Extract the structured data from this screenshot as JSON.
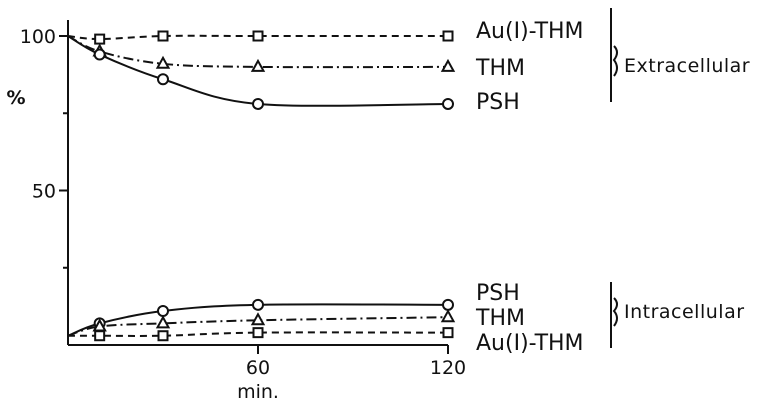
{
  "chart_data": {
    "type": "line",
    "title": "",
    "xlabel": "min.",
    "ylabel": "%",
    "x_ticks": [
      60,
      120
    ],
    "y_ticks": [
      50,
      100
    ],
    "xlim": [
      0,
      120
    ],
    "ylim": [
      0,
      100
    ],
    "groups": [
      {
        "name": "Extracellular",
        "series": [
          {
            "name": "Au(I)-THM",
            "marker": "square",
            "line": "dashed",
            "x": [
              0,
              10,
              30,
              60,
              120
            ],
            "y": [
              100,
              99,
              100,
              100,
              100
            ]
          },
          {
            "name": "THM",
            "marker": "triangle",
            "line": "dash-dot",
            "x": [
              0,
              10,
              30,
              60,
              120
            ],
            "y": [
              100,
              95,
              91,
              90,
              90
            ]
          },
          {
            "name": "PSH",
            "marker": "circle",
            "line": "solid",
            "x": [
              0,
              10,
              30,
              60,
              120
            ],
            "y": [
              100,
              94,
              86,
              78,
              78
            ]
          }
        ]
      },
      {
        "name": "Intracellular",
        "series": [
          {
            "name": "PSH",
            "marker": "circle",
            "line": "solid",
            "x": [
              0,
              10,
              30,
              60,
              120
            ],
            "y": [
              3,
              7,
              11,
              13,
              13
            ]
          },
          {
            "name": "THM",
            "marker": "triangle",
            "line": "dash-dot",
            "x": [
              0,
              10,
              30,
              60,
              120
            ],
            "y": [
              3,
              6,
              7,
              8,
              9
            ]
          },
          {
            "name": "Au(I)-THM",
            "marker": "square",
            "line": "dashed",
            "x": [
              0,
              10,
              30,
              60,
              120
            ],
            "y": [
              3,
              3,
              3,
              4,
              4
            ]
          }
        ]
      }
    ]
  }
}
